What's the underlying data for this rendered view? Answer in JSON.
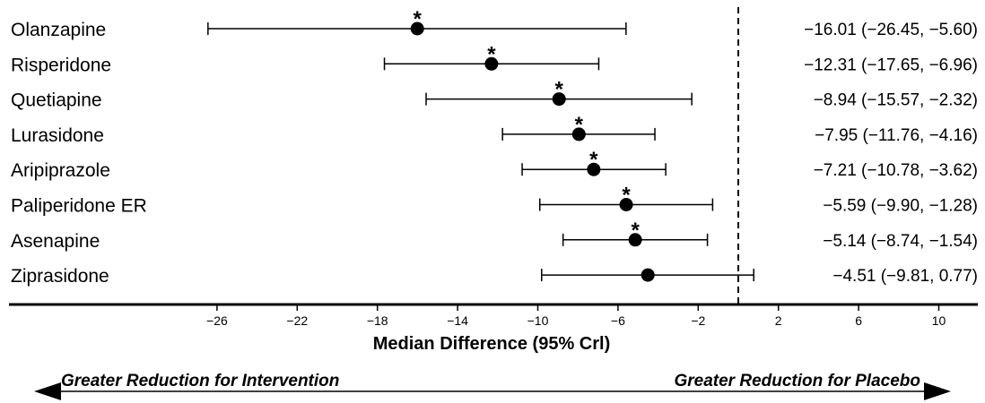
{
  "chart_data": {
    "type": "forest",
    "xlabel": "Median Difference (95% Crl)",
    "xlim": [
      -29,
      12
    ],
    "xticks": [
      -26,
      -22,
      -18,
      -14,
      -10,
      -6,
      -2,
      2,
      6,
      10
    ],
    "xtick_labels": [
      "−26",
      "−22",
      "−18",
      "−14",
      "−10",
      "−6",
      "−2",
      "2",
      "6",
      "10"
    ],
    "reference_line": 0,
    "reference_style": "dashed",
    "significance_marker": "*",
    "direction_left": "Greater Reduction for Intervention",
    "direction_right": "Greater Reduction for Placebo",
    "rows": [
      {
        "label": "Olanzapine",
        "median": -16.01,
        "lower": -26.45,
        "upper": -5.6,
        "significant": true,
        "ci_text": "−16.01 (−26.45, −5.60)"
      },
      {
        "label": "Risperidone",
        "median": -12.31,
        "lower": -17.65,
        "upper": -6.96,
        "significant": true,
        "ci_text": "−12.31 (−17.65, −6.96)"
      },
      {
        "label": "Quetiapine",
        "median": -8.94,
        "lower": -15.57,
        "upper": -2.32,
        "significant": true,
        "ci_text": "−8.94 (−15.57, −2.32)"
      },
      {
        "label": "Lurasidone",
        "median": -7.95,
        "lower": -11.76,
        "upper": -4.16,
        "significant": true,
        "ci_text": "−7.95 (−11.76, −4.16)"
      },
      {
        "label": "Aripiprazole",
        "median": -7.21,
        "lower": -10.78,
        "upper": -3.62,
        "significant": true,
        "ci_text": "−7.21 (−10.78, −3.62)"
      },
      {
        "label": "Paliperidone ER",
        "median": -5.59,
        "lower": -9.9,
        "upper": -1.28,
        "significant": true,
        "ci_text": "−5.59 (−9.90, −1.28)"
      },
      {
        "label": "Asenapine",
        "median": -5.14,
        "lower": -8.74,
        "upper": -1.54,
        "significant": true,
        "ci_text": "−5.14 (−8.74, −1.54)"
      },
      {
        "label": "Ziprasidone",
        "median": -4.51,
        "lower": -9.81,
        "upper": 0.77,
        "significant": false,
        "ci_text": "−4.51 (−9.81, 0.77)"
      }
    ]
  }
}
